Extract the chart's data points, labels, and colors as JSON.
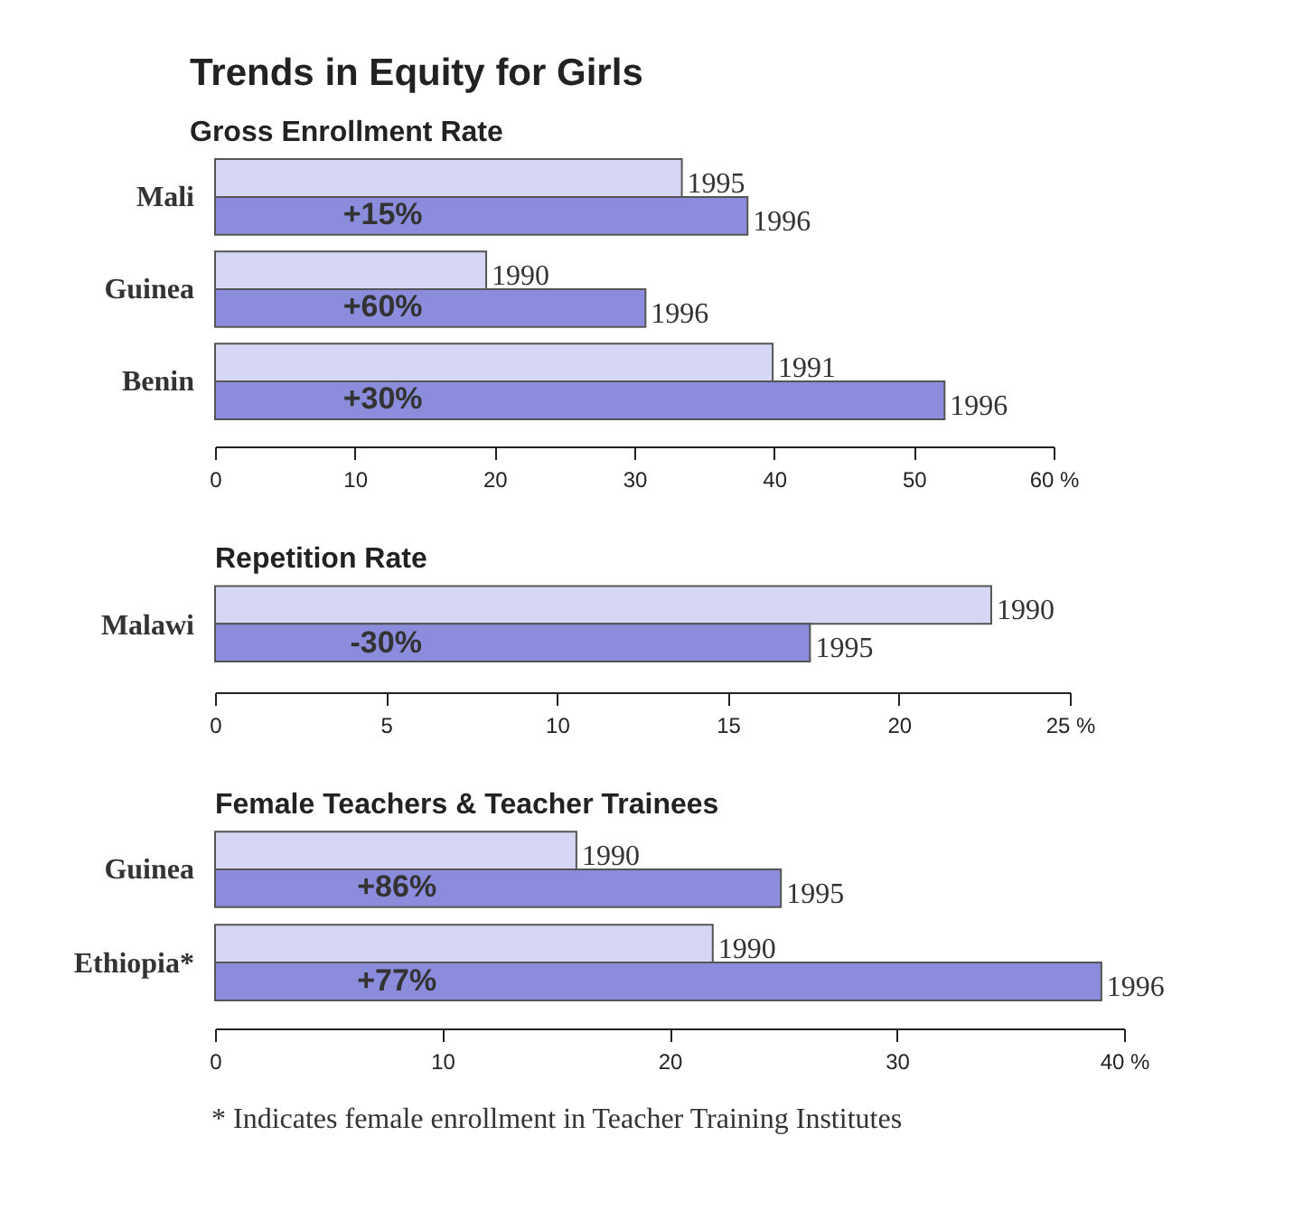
{
  "chart_data": [
    {
      "type": "bar",
      "orientation": "horizontal",
      "title": "Trends in Equity for Girls",
      "subtitle": "Gross Enrollment Rate",
      "categories": [
        "Mali",
        "Guinea",
        "Benin"
      ],
      "series": [
        {
          "color": "#d6d6f5",
          "values": [
            33.4,
            19.4,
            39.9
          ]
        },
        {
          "color": "#8c8cdc",
          "values": [
            38.1,
            30.8,
            52.2
          ]
        }
      ],
      "xlim": [
        0,
        60
      ],
      "xticks": [
        0,
        10,
        20,
        30,
        40,
        50,
        {
          "value": 60,
          "label": "60 %"
        }
      ],
      "annotations": [
        {
          "text": "1995",
          "x": 33.4,
          "y": "Mali"
        },
        {
          "text": "1996",
          "x": 38.1,
          "y": "Mali"
        },
        {
          "text": "1990",
          "x": 19.4,
          "y": "Guinea"
        },
        {
          "text": "1996",
          "x": 30.8,
          "y": "Guinea"
        },
        {
          "text": "1991",
          "x": 39.9,
          "y": "Benin"
        },
        {
          "text": "1996",
          "x": 52.2,
          "y": "Benin"
        },
        {
          "text": "+15%",
          "y": "Mali"
        },
        {
          "text": "+60%",
          "y": "Guinea"
        },
        {
          "text": "+30%",
          "y": "Benin"
        }
      ]
    },
    {
      "type": "bar",
      "orientation": "horizontal",
      "title": "Repetition Rate",
      "categories": [
        "Malawi"
      ],
      "series": [
        {
          "color": "#d6d6f5",
          "values": [
            22.7
          ]
        },
        {
          "color": "#8c8cdc",
          "values": [
            17.4
          ]
        }
      ],
      "xlim": [
        0,
        25
      ],
      "xticks": [
        0,
        5,
        10,
        15,
        20,
        {
          "value": 25,
          "label": "25 %"
        }
      ],
      "annotations": [
        {
          "text": "1990",
          "x": 22.7,
          "y": "Malawi"
        },
        {
          "text": "1995",
          "x": 17.4,
          "y": "Malawi"
        },
        {
          "text": "-30%",
          "y": "Malawi"
        }
      ]
    },
    {
      "type": "bar",
      "orientation": "horizontal",
      "title": "Female Teachers & Teacher Trainees",
      "categories": [
        "Guinea",
        "Ethiopia*"
      ],
      "series": [
        {
          "color": "#d6d6f5",
          "values": [
            15.9,
            21.9
          ]
        },
        {
          "color": "#8c8cdc",
          "values": [
            24.9,
            39.0
          ]
        }
      ],
      "xlim": [
        0,
        40
      ],
      "xticks": [
        0,
        10,
        20,
        30,
        {
          "value": 40,
          "label": "40 %"
        }
      ],
      "annotations": [
        {
          "text": "1990",
          "x": 15.9,
          "y": "Guinea"
        },
        {
          "text": "1995",
          "x": 24.9,
          "y": "Guinea"
        },
        {
          "text": "1990",
          "x": 21.9,
          "y": "Ethiopia*"
        },
        {
          "text": "1996",
          "x": 39.0,
          "y": "Ethiopia*"
        },
        {
          "text": "+86%",
          "y": "Guinea"
        },
        {
          "text": "+77%",
          "y": "Ethiopia*"
        },
        "* Indicates female enrollment in Teacher Training Institutes"
      ]
    }
  ]
}
